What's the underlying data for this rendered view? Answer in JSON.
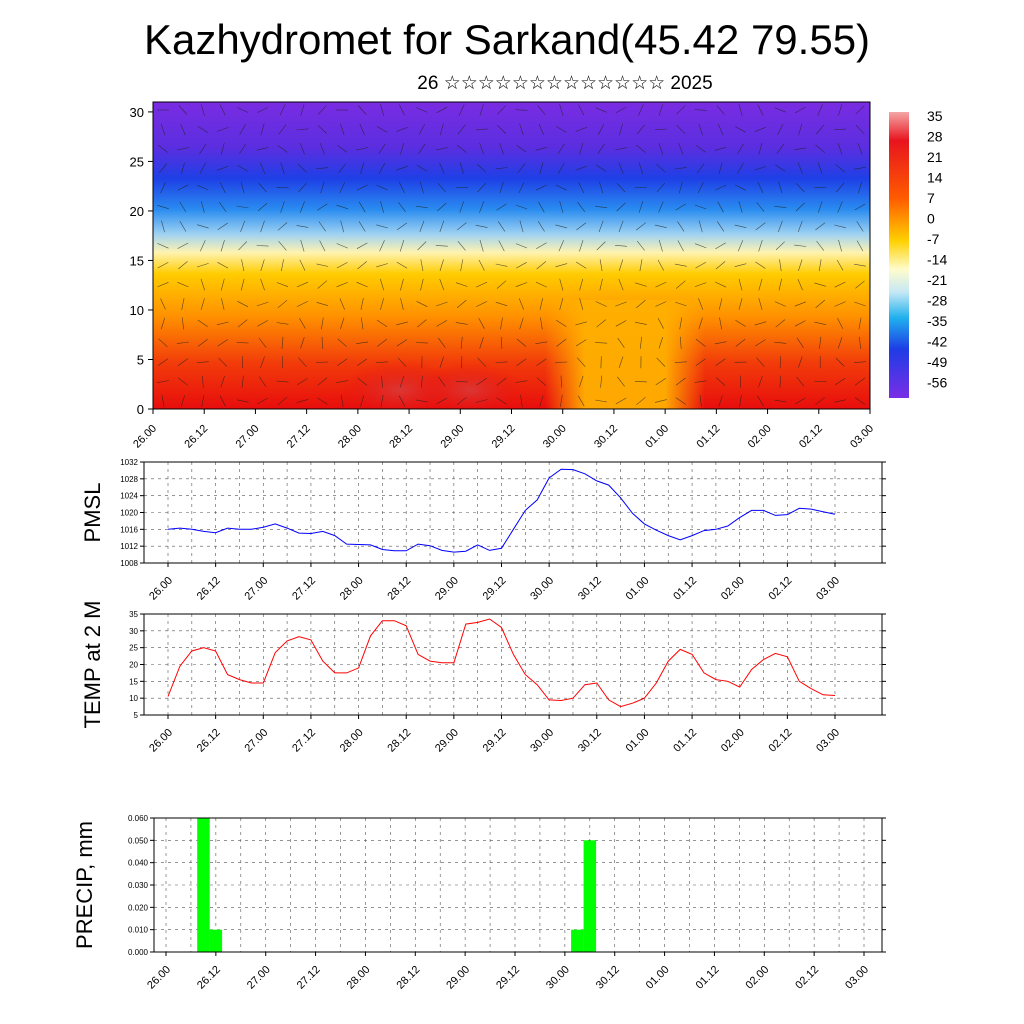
{
  "title": "Kazhydromet for Sarkand(45.42 79.55)",
  "subtitle": "26 ☆☆☆☆☆☆☆☆☆☆☆☆☆ 2025",
  "time_labels": [
    "26.00",
    "26.12",
    "27.00",
    "27.12",
    "28.00",
    "28.12",
    "29.00",
    "29.12",
    "30.00",
    "30.12",
    "01.00",
    "01.12",
    "02.00",
    "02.12",
    "03.00"
  ],
  "colorbar_labels": [
    "35",
    "28",
    "21",
    "14",
    "7",
    "0",
    "-7",
    "-14",
    "-21",
    "-28",
    "-35",
    "-42",
    "-49",
    "-56"
  ],
  "chart_data": [
    {
      "type": "heatmap",
      "title": "",
      "ylim": [
        0,
        31
      ],
      "y_ticks": [
        0,
        5,
        10,
        15,
        20,
        25,
        30
      ],
      "color_range": [
        -56,
        35
      ],
      "overlay": "wind vectors"
    },
    {
      "type": "line",
      "ylabel": "PMSL",
      "ylim": [
        1008,
        1032
      ],
      "y_ticks": [
        1008,
        1012,
        1016,
        1020,
        1024,
        1028,
        1032
      ],
      "series": [
        {
          "color": "#0000ff",
          "values": [
            1016,
            1016.3,
            1016,
            1015.5,
            1015.2,
            1016.3,
            1016,
            1016,
            1016.5,
            1017.3,
            1016.3,
            1015.1,
            1015,
            1015.5,
            1014.5,
            1012.5,
            1012.4,
            1012.3,
            1011.2,
            1010.9,
            1010.9,
            1012.5,
            1012.1,
            1011,
            1010.6,
            1010.8,
            1012.3,
            1011,
            1011.5,
            1016,
            1020.5,
            1023,
            1028.2,
            1030.3,
            1030.2,
            1029.2,
            1027.5,
            1026.5,
            1023.5,
            1019.8,
            1017.3,
            1015.8,
            1014.5,
            1013.5,
            1014.5,
            1015.7,
            1016,
            1016.8,
            1018.8,
            1020.5,
            1020.5,
            1019.3,
            1019.5,
            1021,
            1020.8,
            1020.2,
            1019.6
          ]
        }
      ]
    },
    {
      "type": "line",
      "ylabel": "TEMP at 2 M",
      "ylim": [
        5,
        35
      ],
      "y_ticks": [
        5,
        10,
        15,
        20,
        25,
        30,
        35
      ],
      "series": [
        {
          "color": "#ff0000",
          "values": [
            10.5,
            19.5,
            24,
            25,
            24,
            17,
            15.5,
            14.5,
            14.5,
            23.5,
            27,
            28.3,
            27.3,
            21,
            17.5,
            17.5,
            19,
            28.5,
            33,
            33,
            31.5,
            23,
            21,
            20.5,
            20.5,
            32,
            32.5,
            33.5,
            31,
            23,
            17,
            14,
            9.5,
            9.3,
            10,
            14,
            14.5,
            9.5,
            7.5,
            8.5,
            10,
            14.5,
            21,
            24.5,
            23,
            17.5,
            15.5,
            15,
            13.3,
            18.5,
            21.5,
            23.3,
            22.3,
            15,
            12.8,
            11,
            10.8
          ]
        }
      ]
    },
    {
      "type": "bar",
      "ylabel": "PRECIP, mm",
      "ylim": [
        0,
        0.06
      ],
      "y_ticks": [
        "0.000",
        "0.010",
        "0.020",
        "0.030",
        "0.040",
        "0.050",
        "0.060"
      ],
      "series": [
        {
          "color": "#00ff00",
          "values": [
            0,
            0,
            0,
            0.06,
            0.01,
            0,
            0,
            0,
            0,
            0,
            0,
            0,
            0,
            0,
            0,
            0,
            0,
            0,
            0,
            0,
            0,
            0,
            0,
            0,
            0,
            0,
            0,
            0,
            0,
            0,
            0,
            0,
            0,
            0.01,
            0.05,
            0,
            0,
            0,
            0,
            0,
            0,
            0,
            0,
            0,
            0,
            0,
            0,
            0,
            0,
            0,
            0,
            0,
            0,
            0,
            0,
            0,
            0
          ]
        }
      ]
    }
  ]
}
